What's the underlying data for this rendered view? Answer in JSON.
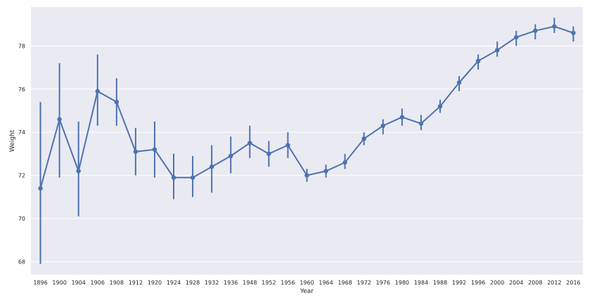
{
  "chart_data": {
    "type": "line",
    "title": "",
    "xlabel": "Year",
    "ylabel": "Weight",
    "categories": [
      "1896",
      "1900",
      "1904",
      "1906",
      "1908",
      "1912",
      "1920",
      "1924",
      "1928",
      "1932",
      "1936",
      "1948",
      "1952",
      "1956",
      "1960",
      "1964",
      "1968",
      "1972",
      "1976",
      "1980",
      "1984",
      "1988",
      "1992",
      "1996",
      "2000",
      "2004",
      "2008",
      "2012",
      "2016"
    ],
    "series": [
      {
        "values": [
          71.4,
          74.6,
          72.2,
          75.9,
          75.4,
          73.1,
          73.2,
          71.9,
          71.9,
          72.4,
          72.9,
          73.5,
          73.0,
          73.4,
          72.0,
          72.2,
          72.6,
          73.7,
          74.3,
          74.7,
          74.4,
          75.2,
          76.3,
          77.3,
          77.8,
          78.4,
          78.7,
          78.9,
          78.6
        ],
        "error_low": [
          67.9,
          71.9,
          70.1,
          74.3,
          74.3,
          72.0,
          71.9,
          70.9,
          71.0,
          71.2,
          72.1,
          72.8,
          72.4,
          72.8,
          71.7,
          71.9,
          72.3,
          73.4,
          73.9,
          74.3,
          74.1,
          74.9,
          75.9,
          76.9,
          77.5,
          78.0,
          78.3,
          78.6,
          78.2
        ],
        "error_high": [
          75.4,
          77.2,
          74.5,
          77.6,
          76.5,
          74.2,
          74.5,
          73.0,
          72.9,
          73.4,
          73.8,
          74.3,
          73.6,
          74.0,
          72.3,
          72.5,
          73.0,
          74.0,
          74.6,
          75.1,
          74.8,
          75.5,
          76.6,
          77.6,
          78.2,
          78.7,
          79.0,
          79.3,
          78.9
        ],
        "color": "#4c72b0"
      }
    ],
    "yticks": [
      68,
      70,
      72,
      74,
      76,
      78
    ],
    "ylim": [
      67.4,
      79.8
    ],
    "grid": true,
    "background": "#eaeaf2",
    "grid_color": "#ffffff"
  }
}
